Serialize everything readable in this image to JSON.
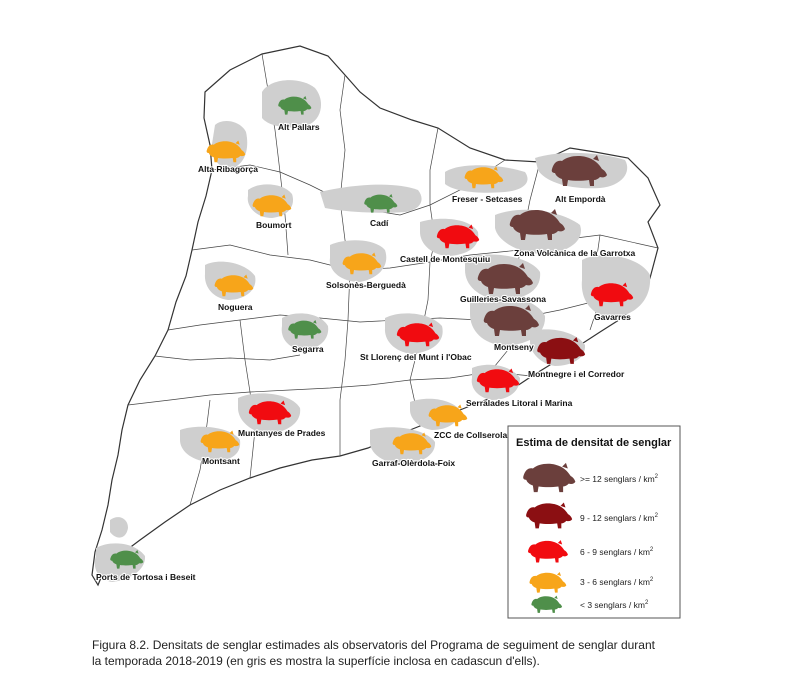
{
  "colors": {
    "brown": "#6b3f3c",
    "darkred": "#8b0f12",
    "red": "#f10b10",
    "orange": "#f7a51a",
    "green": "#4f8f4a",
    "area_gray": "#cfcfcf",
    "border": "#333333"
  },
  "observatories": [
    {
      "name": "Alt Pallars",
      "density": "< 3 senglars / km²",
      "class": "green"
    },
    {
      "name": "Alta Ribagorça",
      "density": "3 - 6 senglars / km²",
      "class": "orange"
    },
    {
      "name": "Boumort",
      "density": "3 - 6 senglars / km²",
      "class": "orange"
    },
    {
      "name": "Cadí",
      "density": "< 3 senglars / km²",
      "class": "green"
    },
    {
      "name": "Freser - Setcases",
      "density": "3 - 6 senglars / km²",
      "class": "orange"
    },
    {
      "name": "Alt Empordà",
      "density": ">= 12 senglars / km²",
      "class": "brown"
    },
    {
      "name": "Castell de Montesquiu",
      "density": "6 - 9 senglars / km²",
      "class": "red"
    },
    {
      "name": "Zona Volcànica de la Garrotxa",
      "density": ">= 12 senglars / km²",
      "class": "brown"
    },
    {
      "name": "Solsonès-Berguedà",
      "density": "3 - 6 senglars / km²",
      "class": "orange"
    },
    {
      "name": "Noguera",
      "density": "3 - 6 senglars / km²",
      "class": "orange"
    },
    {
      "name": "Guilleries-Savassona",
      "density": ">= 12 senglars / km²",
      "class": "brown"
    },
    {
      "name": "Gavarres",
      "density": "6 - 9 senglars / km²",
      "class": "red"
    },
    {
      "name": "Segarra",
      "density": "< 3 senglars / km²",
      "class": "green"
    },
    {
      "name": "St Llorenç del Munt i l'Obac",
      "density": "6 - 9 senglars / km²",
      "class": "red"
    },
    {
      "name": "Montseny",
      "density": ">= 12 senglars / km²",
      "class": "brown"
    },
    {
      "name": "Montnegre i el Corredor",
      "density": "9 - 12 senglars / km²",
      "class": "darkred"
    },
    {
      "name": "Serralades Litoral i Marina",
      "density": "6 - 9 senglars / km²",
      "class": "red"
    },
    {
      "name": "Muntanyes de Prades",
      "density": "6 - 9 senglars / km²",
      "class": "red"
    },
    {
      "name": "ZCC de Collserola",
      "density": "3 - 6 senglars / km²",
      "class": "orange"
    },
    {
      "name": "Montsant",
      "density": "3 - 6 senglars / km²",
      "class": "orange"
    },
    {
      "name": "Garraf-Olèrdola-Foix",
      "density": "3 - 6 senglars / km²",
      "class": "orange"
    },
    {
      "name": "Ports de Tortosa i Beseit",
      "density": "< 3 senglars / km²",
      "class": "green"
    }
  ],
  "legend": {
    "title": "Estima de densitat de senglar",
    "items": [
      {
        "label": ">= 12 senglars / km",
        "sup": "2",
        "class": "brown"
      },
      {
        "label": "9 - 12 senglars / km",
        "sup": "2",
        "class": "darkred"
      },
      {
        "label": "6 - 9 senglars / km",
        "sup": "2",
        "class": "red"
      },
      {
        "label": "3 - 6 senglars / km",
        "sup": "2",
        "class": "orange"
      },
      {
        "label": "< 3 senglars / km",
        "sup": "2",
        "class": "green"
      }
    ]
  },
  "caption": {
    "line1": "Figura 8.2. Densitats de senglar estimades als observatoris del Programa de seguiment de senglar durant",
    "line2": "la temporada 2018-2019 (en gris es mostra la superfície inclosa en cadascun d'ells)."
  }
}
